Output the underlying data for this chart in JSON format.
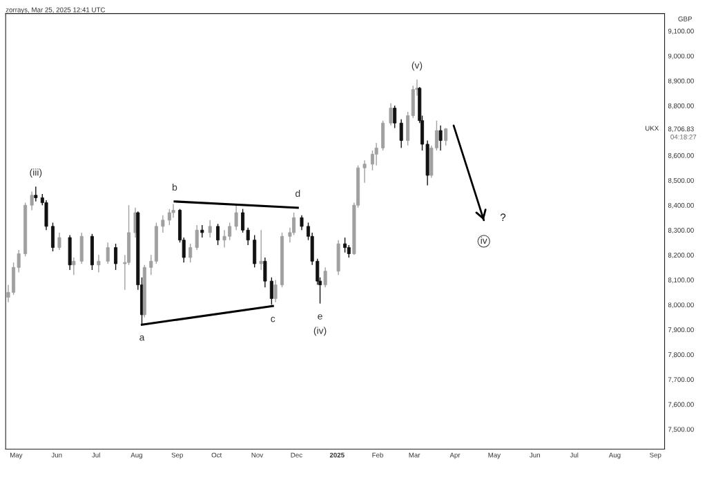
{
  "chart_data": {
    "type": "candlestick",
    "title": "zorrays, Mar 25, 2025 12:41 UTC",
    "ylabel": "GBP",
    "x": [
      "2024-04-25",
      "2024-04-29",
      "2024-05-03",
      "2024-05-08",
      "2024-05-13",
      "2024-05-16",
      "2024-05-21",
      "2024-05-24",
      "2024-05-29",
      "2024-06-03",
      "2024-06-11",
      "2024-06-14",
      "2024-06-20",
      "2024-06-28",
      "2024-07-03",
      "2024-07-10",
      "2024-07-16",
      "2024-07-23",
      "2024-07-26",
      "2024-07-31",
      "2024-08-02",
      "2024-08-05",
      "2024-08-07",
      "2024-08-12",
      "2024-08-16",
      "2024-08-21",
      "2024-08-26",
      "2024-08-29",
      "2024-09-03",
      "2024-09-06",
      "2024-09-11",
      "2024-09-16",
      "2024-09-20",
      "2024-09-26",
      "2024-10-02",
      "2024-10-07",
      "2024-10-11",
      "2024-10-16",
      "2024-10-21",
      "2024-10-25",
      "2024-10-30",
      "2024-11-04",
      "2024-11-07",
      "2024-11-12",
      "2024-11-15",
      "2024-11-20",
      "2024-11-26",
      "2024-11-29",
      "2024-12-05",
      "2024-12-10",
      "2024-12-13",
      "2024-12-17",
      "2024-12-19",
      "2024-12-23",
      "2025-01-02",
      "2025-01-07",
      "2025-01-10",
      "2025-01-14",
      "2025-01-17",
      "2025-01-22",
      "2025-01-28",
      "2025-01-31",
      "2025-02-05",
      "2025-02-11",
      "2025-02-14",
      "2025-02-19",
      "2025-02-24",
      "2025-02-28",
      "2025-03-03",
      "2025-03-05",
      "2025-03-07",
      "2025-03-11",
      "2025-03-14",
      "2025-03-18",
      "2025-03-21",
      "2025-03-25"
    ],
    "ohlc": [
      [
        8030,
        8080,
        8010,
        8050
      ],
      [
        8050,
        8170,
        8040,
        8150
      ],
      [
        8150,
        8220,
        8130,
        8205
      ],
      [
        8205,
        8410,
        8195,
        8400
      ],
      [
        8400,
        8455,
        8380,
        8440
      ],
      [
        8440,
        8475,
        8415,
        8430
      ],
      [
        8430,
        8445,
        8400,
        8410
      ],
      [
        8410,
        8420,
        8300,
        8315
      ],
      [
        8315,
        8330,
        8215,
        8230
      ],
      [
        8230,
        8290,
        8220,
        8270
      ],
      [
        8270,
        8280,
        8140,
        8160
      ],
      [
        8160,
        8190,
        8120,
        8175
      ],
      [
        8175,
        8290,
        8165,
        8275
      ],
      [
        8275,
        8285,
        8140,
        8160
      ],
      [
        8160,
        8200,
        8130,
        8175
      ],
      [
        8175,
        8250,
        8165,
        8230
      ],
      [
        8230,
        8245,
        8140,
        8165
      ],
      [
        8165,
        8200,
        8060,
        8170
      ],
      [
        8170,
        8400,
        8160,
        8290
      ],
      [
        8290,
        8390,
        8270,
        8370
      ],
      [
        8370,
        8375,
        8060,
        8080
      ],
      [
        8080,
        8110,
        7920,
        7960
      ],
      [
        7960,
        8160,
        7950,
        8150
      ],
      [
        8150,
        8200,
        8120,
        8175
      ],
      [
        8175,
        8330,
        8165,
        8315
      ],
      [
        8315,
        8360,
        8290,
        8340
      ],
      [
        8340,
        8385,
        8320,
        8370
      ],
      [
        8370,
        8405,
        8350,
        8380
      ],
      [
        8380,
        8385,
        8250,
        8260
      ],
      [
        8260,
        8270,
        8170,
        8190
      ],
      [
        8190,
        8245,
        8170,
        8230
      ],
      [
        8230,
        8320,
        8220,
        8300
      ],
      [
        8300,
        8320,
        8270,
        8290
      ],
      [
        8290,
        8340,
        8270,
        8315
      ],
      [
        8315,
        8325,
        8240,
        8260
      ],
      [
        8260,
        8300,
        8230,
        8275
      ],
      [
        8275,
        8330,
        8260,
        8315
      ],
      [
        8315,
        8400,
        8300,
        8370
      ],
      [
        8370,
        8385,
        8290,
        8300
      ],
      [
        8300,
        8310,
        8240,
        8260
      ],
      [
        8260,
        8280,
        8150,
        8165
      ],
      [
        8165,
        8300,
        8140,
        8175
      ],
      [
        8175,
        8190,
        8070,
        8095
      ],
      [
        8095,
        8110,
        8000,
        8025
      ],
      [
        8025,
        8100,
        8010,
        8080
      ],
      [
        8080,
        8290,
        8070,
        8275
      ],
      [
        8275,
        8310,
        8250,
        8290
      ],
      [
        8290,
        8370,
        8280,
        8350
      ],
      [
        8350,
        8360,
        8300,
        8315
      ],
      [
        8315,
        8330,
        8260,
        8275
      ],
      [
        8275,
        8290,
        8160,
        8175
      ],
      [
        8175,
        8185,
        8080,
        8095
      ],
      [
        8095,
        8110,
        8005,
        8080
      ],
      [
        8080,
        8150,
        8070,
        8135
      ],
      [
        8135,
        8260,
        8120,
        8245
      ],
      [
        8245,
        8270,
        8210,
        8230
      ],
      [
        8230,
        8240,
        8190,
        8205
      ],
      [
        8205,
        8410,
        8200,
        8400
      ],
      [
        8400,
        8560,
        8390,
        8550
      ],
      [
        8550,
        8580,
        8490,
        8565
      ],
      [
        8565,
        8620,
        8540,
        8605
      ],
      [
        8605,
        8650,
        8560,
        8630
      ],
      [
        8630,
        8740,
        8620,
        8730
      ],
      [
        8730,
        8810,
        8720,
        8790
      ],
      [
        8790,
        8800,
        8710,
        8730
      ],
      [
        8730,
        8745,
        8630,
        8660
      ],
      [
        8660,
        8775,
        8640,
        8760
      ],
      [
        8760,
        8880,
        8750,
        8865
      ],
      [
        8865,
        8905,
        8840,
        8870
      ],
      [
        8870,
        8875,
        8730,
        8740
      ],
      [
        8740,
        8760,
        8620,
        8645
      ],
      [
        8645,
        8660,
        8480,
        8520
      ],
      [
        8520,
        8640,
        8510,
        8630
      ],
      [
        8630,
        8740,
        8620,
        8700
      ],
      [
        8700,
        8720,
        8620,
        8660
      ],
      [
        8660,
        8710,
        8640,
        8706.83
      ]
    ],
    "colors": [
      "#a0a0a0",
      "#a0a0a0",
      "#a0a0a0",
      "#a0a0a0",
      "#a0a0a0",
      "#111111",
      "#111111",
      "#111111",
      "#111111",
      "#a0a0a0",
      "#111111",
      "#a0a0a0",
      "#a0a0a0",
      "#111111",
      "#a0a0a0",
      "#a0a0a0",
      "#111111",
      "#a0a0a0",
      "#a0a0a0",
      "#a0a0a0",
      "#111111",
      "#111111",
      "#a0a0a0",
      "#a0a0a0",
      "#a0a0a0",
      "#a0a0a0",
      "#a0a0a0",
      "#a0a0a0",
      "#111111",
      "#111111",
      "#a0a0a0",
      "#a0a0a0",
      "#111111",
      "#a0a0a0",
      "#111111",
      "#a0a0a0",
      "#a0a0a0",
      "#a0a0a0",
      "#111111",
      "#111111",
      "#111111",
      "#a0a0a0",
      "#111111",
      "#111111",
      "#a0a0a0",
      "#a0a0a0",
      "#a0a0a0",
      "#a0a0a0",
      "#111111",
      "#111111",
      "#111111",
      "#111111",
      "#111111",
      "#a0a0a0",
      "#a0a0a0",
      "#111111",
      "#111111",
      "#a0a0a0",
      "#a0a0a0",
      "#a0a0a0",
      "#a0a0a0",
      "#a0a0a0",
      "#a0a0a0",
      "#a0a0a0",
      "#111111",
      "#111111",
      "#a0a0a0",
      "#a0a0a0",
      "#a0a0a0",
      "#111111",
      "#111111",
      "#111111",
      "#a0a0a0",
      "#a0a0a0",
      "#111111",
      "#a0a0a0"
    ],
    "series": [
      {
        "type": "line",
        "color": "#000000",
        "x": [
          "2024-08-05",
          "2024-11-13"
        ],
        "values": [
          7920,
          7995
        ]
      },
      {
        "type": "line",
        "color": "#000000",
        "x": [
          "2024-08-30",
          "2024-12-02"
        ],
        "values": [
          8415,
          8390
        ]
      },
      {
        "type": "line",
        "color": "#000000",
        "x": [
          "2025-03-31",
          "2025-04-23"
        ],
        "values": [
          8720,
          8340
        ]
      }
    ],
    "annotations": [
      {
        "text": "(iii)",
        "x": "2024-05-16",
        "y": 8475
      },
      {
        "text": "a",
        "x": "2024-08-05",
        "y": 7920
      },
      {
        "text": "b",
        "x": "2024-08-30",
        "y": 8415
      },
      {
        "text": "c",
        "x": "2024-11-13",
        "y": 7995
      },
      {
        "text": "d",
        "x": "2024-12-02",
        "y": 8390
      },
      {
        "text": "e",
        "x": "2024-12-19",
        "y": 8005
      },
      {
        "text": "(iv)",
        "x": "2024-12-19",
        "y": 8005
      },
      {
        "text": "(v)",
        "x": "2025-03-03",
        "y": 8905
      },
      {
        "text": "iv",
        "x": "2025-04-23",
        "y": 8340
      },
      {
        "text": "?",
        "x": "2025-04-23",
        "y": 8340
      },
      "UKX",
      "04:18:27"
    ],
    "xlim": [
      "2024-04-23",
      "2025-09-08"
    ],
    "xticks": [
      {
        "value": "2024-05-01",
        "label": "May"
      },
      {
        "value": "2024-06-01",
        "label": "Jun"
      },
      {
        "value": "2024-07-01",
        "label": "Jul"
      },
      {
        "value": "2024-08-01",
        "label": "Aug"
      },
      {
        "value": "2024-09-01",
        "label": "Sep"
      },
      {
        "value": "2024-10-01",
        "label": "Oct"
      },
      {
        "value": "2024-11-01",
        "label": "Nov"
      },
      {
        "value": "2024-12-01",
        "label": "Dec"
      },
      {
        "value": "2025-01-01",
        "label": "2025"
      },
      {
        "value": "2025-02-01",
        "label": "Feb"
      },
      {
        "value": "2025-03-01",
        "label": "Mar"
      },
      {
        "value": "2025-04-01",
        "label": "Apr"
      },
      {
        "value": "2025-05-01",
        "label": "May"
      },
      {
        "value": "2025-06-01",
        "label": "Jun"
      },
      {
        "value": "2025-07-01",
        "label": "Jul"
      },
      {
        "value": "2025-08-01",
        "label": "Aug"
      },
      {
        "value": "2025-09-01",
        "label": "Sep"
      }
    ],
    "ylim": [
      7420,
      9170
    ],
    "yticks": [
      {
        "value": 7500,
        "label": "7,500.00"
      },
      {
        "value": 7600,
        "label": "7,600.00"
      },
      {
        "value": 7700,
        "label": "7,700.00"
      },
      {
        "value": 7800,
        "label": "7,800.00"
      },
      {
        "value": 7900,
        "label": "7,900.00"
      },
      {
        "value": 8000,
        "label": "8,000.00"
      },
      {
        "value": 8100,
        "label": "8,100.00"
      },
      {
        "value": 8200,
        "label": "8,200.00"
      },
      {
        "value": 8300,
        "label": "8,300.00"
      },
      {
        "value": 8400,
        "label": "8,400.00"
      },
      {
        "value": 8500,
        "label": "8,500.00"
      },
      {
        "value": 8600,
        "label": "8,600.00"
      },
      {
        "value": 8706.83,
        "label": "8,706.83"
      },
      {
        "value": 8800,
        "label": "8,800.00"
      },
      {
        "value": 8900,
        "label": "8,900.00"
      },
      {
        "value": 9000,
        "label": "9,000.00"
      },
      {
        "value": 9100,
        "label": "9,100.00"
      }
    ],
    "grid": false,
    "legend": false
  }
}
